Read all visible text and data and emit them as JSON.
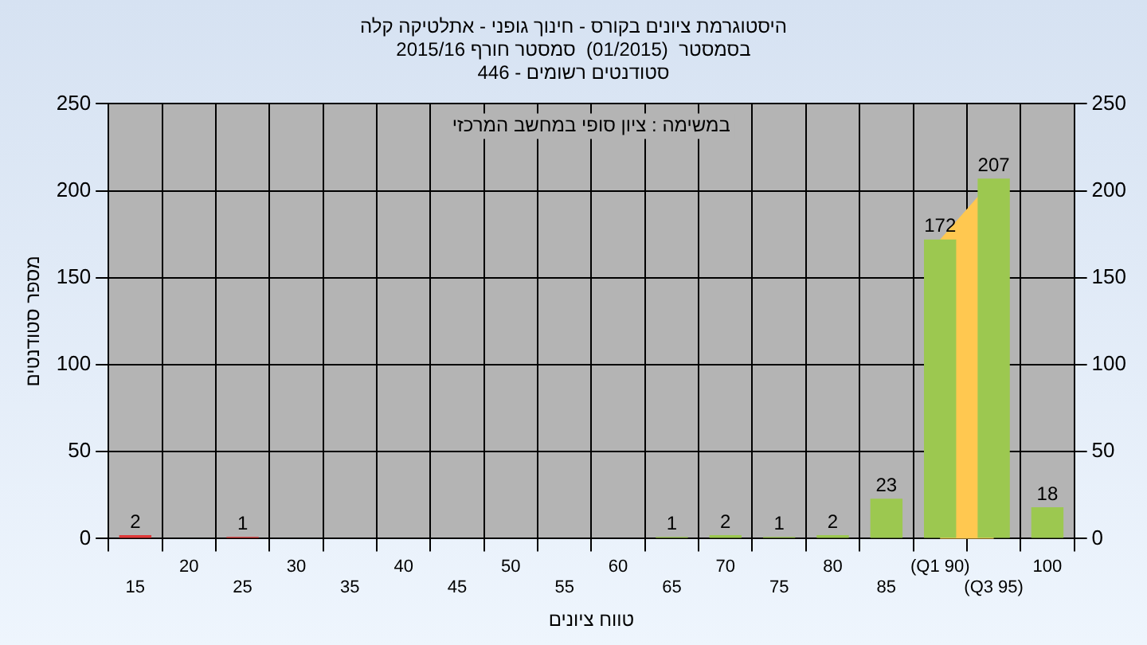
{
  "chart_data": {
    "type": "bar",
    "title": "היסטוגרמת ציונים בקורס - חינוך גופני - אתלטיקה קלה\nבסמסטר  (01/2015)  סמסטר חורף 2015/16\nסטודנטים רשומים - 446",
    "xlabel": "טווח ציונים",
    "ylabel": "מספר סטודנטים",
    "categories": [
      "15",
      "20",
      "25",
      "30",
      "35",
      "40",
      "45",
      "50",
      "55",
      "60",
      "65",
      "70",
      "75",
      "80",
      "85",
      "(Q1 90)",
      "(Q3 95)",
      "100"
    ],
    "values": [
      2,
      0,
      1,
      0,
      0,
      0,
      0,
      0,
      0,
      0,
      1,
      2,
      1,
      2,
      23,
      172,
      207,
      18
    ],
    "colors": [
      "#e03a3a",
      "#9cc850",
      "#e03a3a",
      "#9cc850",
      "#9cc850",
      "#9cc850",
      "#9cc850",
      "#9cc850",
      "#9cc850",
      "#9cc850",
      "#9cc850",
      "#9cc850",
      "#9cc850",
      "#9cc850",
      "#9cc850",
      "#9cc850",
      "#9cc850",
      "#9cc850"
    ],
    "value_labels": [
      "2",
      null,
      "1",
      null,
      null,
      null,
      null,
      null,
      null,
      null,
      "1",
      "2",
      "1",
      "2",
      "23",
      "172",
      "207",
      "18"
    ],
    "ylim": [
      0,
      250
    ],
    "yticks": [
      0,
      50,
      100,
      150,
      200,
      250
    ],
    "y2lim": [
      0,
      250
    ],
    "y2ticks": [
      0,
      50,
      100,
      150,
      200,
      250
    ],
    "bands": [
      {
        "axis": "x",
        "from": "(Q1 90)",
        "to": "(Q3 95)",
        "color": "#ffc850"
      }
    ],
    "annotations": [
      "במשימה : ציון סופי במחשב המרכזי"
    ],
    "grid": true,
    "legend": false
  }
}
